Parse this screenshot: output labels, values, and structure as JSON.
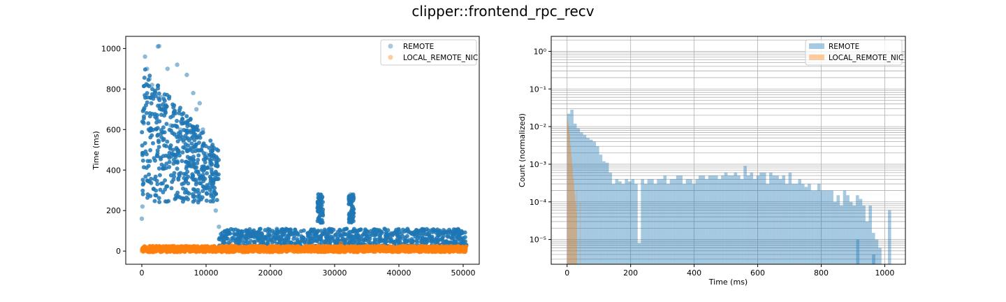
{
  "figure": {
    "title": "clipper::frontend_rpc_recv"
  },
  "colors": {
    "remote": "#1f77b4",
    "local": "#ff7f0e",
    "grid": "#b0b0b0",
    "axis": "#000000"
  },
  "chart_data": [
    {
      "type": "scatter",
      "title": "",
      "xlabel": "",
      "ylabel": "Time (ms)",
      "xlim": [
        -2500,
        52500
      ],
      "ylim": [
        -65,
        1060
      ],
      "xticks": [
        0,
        10000,
        20000,
        30000,
        40000,
        50000
      ],
      "xtick_labels": [
        "0",
        "10000",
        "20000",
        "30000",
        "40000",
        "50000"
      ],
      "yticks": [
        0,
        200,
        400,
        600,
        800,
        1000
      ],
      "ytick_labels": [
        "0",
        "200",
        "400",
        "600",
        "800",
        "1000"
      ],
      "grid": false,
      "legend_position": "top-right",
      "series": [
        {
          "name": "REMOTE",
          "color": "#1f77b4",
          "alpha": 0.4,
          "points": [
            [
              0,
              160
            ],
            [
              100,
              220
            ],
            [
              300,
              630
            ],
            [
              500,
              960
            ],
            [
              800,
              900
            ],
            [
              1200,
              850
            ],
            [
              1600,
              820
            ],
            [
              2000,
              780
            ],
            [
              2500,
              1010
            ],
            [
              2700,
              1012
            ],
            [
              3000,
              760
            ],
            [
              3500,
              700
            ],
            [
              4000,
              900
            ],
            [
              4500,
              620
            ],
            [
              5000,
              580
            ],
            [
              5500,
              920
            ],
            [
              6000,
              600
            ],
            [
              6500,
              540
            ],
            [
              7000,
              870
            ],
            [
              7500,
              500
            ],
            [
              8000,
              780
            ],
            [
              8500,
              700
            ],
            [
              9000,
              730
            ],
            [
              9500,
              600
            ],
            [
              10000,
              480
            ],
            [
              10500,
              420
            ],
            [
              11000,
              300
            ],
            [
              11500,
              200
            ],
            [
              12000,
              120
            ],
            [
              13000,
              60
            ],
            [
              15000,
              70
            ],
            [
              18000,
              80
            ],
            [
              21000,
              110
            ],
            [
              24000,
              90
            ],
            [
              27500,
              280
            ],
            [
              27800,
              230
            ],
            [
              28000,
              190
            ],
            [
              30000,
              60
            ],
            [
              32500,
              280
            ],
            [
              32800,
              220
            ],
            [
              35000,
              70
            ],
            [
              38000,
              60
            ],
            [
              41000,
              50
            ],
            [
              43500,
              100
            ],
            [
              46000,
              80
            ],
            [
              48000,
              70
            ],
            [
              50000,
              60
            ]
          ],
          "bands": [
            {
              "x": [
                0,
                12000
              ],
              "y_min": 240,
              "y_max": 920,
              "note": "dense cluster"
            },
            {
              "x": [
                12000,
                50500
              ],
              "y_min": 15,
              "y_max": 110,
              "note": "dense band"
            },
            {
              "x": [
                27300,
                28200
              ],
              "y_min": 140,
              "y_max": 280,
              "note": "spike"
            },
            {
              "x": [
                32200,
                33000
              ],
              "y_min": 140,
              "y_max": 280,
              "note": "spike"
            }
          ]
        },
        {
          "name": "LOCAL_REMOTE_NIC",
          "color": "#ff7f0e",
          "alpha": 0.4,
          "points": [
            [
              0,
              0
            ],
            [
              2000,
              10
            ],
            [
              5000,
              25
            ],
            [
              8000,
              15
            ],
            [
              11000,
              20
            ],
            [
              14000,
              30
            ],
            [
              17000,
              25
            ],
            [
              20000,
              20
            ],
            [
              23000,
              20
            ],
            [
              26000,
              20
            ],
            [
              29000,
              20
            ],
            [
              31000,
              40
            ],
            [
              34000,
              20
            ],
            [
              37000,
              20
            ],
            [
              40000,
              15
            ],
            [
              43000,
              20
            ],
            [
              46000,
              20
            ],
            [
              50000,
              20
            ]
          ],
          "bands": [
            {
              "x": [
                0,
                50500
              ],
              "y_min": -5,
              "y_max": 25,
              "note": "dense band"
            }
          ]
        }
      ]
    },
    {
      "type": "histogram",
      "title": "",
      "xlabel": "Time (ms)",
      "ylabel": "Count (normalized)",
      "yscale": "log",
      "xlim": [
        -50,
        1065
      ],
      "ylim": [
        2.2e-06,
        2.5
      ],
      "xticks": [
        0,
        200,
        400,
        600,
        800,
        1000
      ],
      "xtick_labels": [
        "0",
        "200",
        "400",
        "600",
        "800",
        "1000"
      ],
      "yticks": [
        1e-05,
        0.0001,
        0.001,
        0.01,
        0.1,
        1
      ],
      "ytick_labels": [
        "10⁻⁵",
        "10⁻⁴",
        "10⁻³",
        "10⁻²",
        "10⁻¹",
        "10⁰"
      ],
      "grid": true,
      "legend_position": "top-right",
      "series": [
        {
          "name": "REMOTE",
          "color": "#1f77b4",
          "alpha": 0.4,
          "bin_width": 10.1,
          "bin_start": 0,
          "values": [
            0.022,
            0.028,
            0.012,
            0.009,
            0.007,
            0.006,
            0.005,
            0.0045,
            0.004,
            0.003,
            0.0018,
            0.0012,
            0.0011,
            0.0006,
            0.0003,
            0.0004,
            0.00035,
            0.0003,
            0.0004,
            0.00035,
            0.0004,
            0.0003,
            8e-06,
            0.0004,
            0.0003,
            0.0004,
            0.0004,
            0.0003,
            0.0004,
            0.0004,
            0.0005,
            0.0003,
            0.0004,
            0.0004,
            0.0005,
            0.0005,
            0.0003,
            0.0004,
            0.0004,
            0.0003,
            0.0004,
            0.0005,
            0.0005,
            0.0004,
            0.0005,
            0.0005,
            0.0005,
            0.0004,
            0.0005,
            0.0006,
            0.0005,
            0.0005,
            0.0006,
            0.0005,
            0.0004,
            0.0009,
            0.0005,
            0.0006,
            0.0004,
            0.0005,
            0.0006,
            0.0006,
            0.0003,
            0.0006,
            0.0005,
            0.0005,
            0.0004,
            0.0005,
            0.0003,
            0.0006,
            0.0003,
            0.0003,
            0.0004,
            0.0003,
            0.00025,
            0.0003,
            0.0002,
            0.0002,
            0.0003,
            0.0002,
            0.0002,
            0.0002,
            0.0002,
            0.0001,
            0.00015,
            8e-05,
            0.0002,
            0.00015,
            0.0001,
            8e-05,
            0.00015,
            0.00012,
            8e-05,
            3e-05,
            8e-05,
            1.5e-05,
            1e-05,
            6e-06,
            0.0,
            0.0,
            0.0
          ],
          "extra_bars": [
            {
              "x": 910,
              "value": 1e-05
            },
            {
              "x": 960,
              "value": 4e-06
            },
            {
              "x": 1010,
              "value": 6e-05
            }
          ]
        },
        {
          "name": "LOCAL_REMOTE_NIC",
          "color": "#ff7f0e",
          "alpha": 0.4,
          "bin_width": 1.5,
          "bin_start": 0,
          "values": [
            0.018,
            0.015,
            0.012,
            0.01,
            0.008,
            0.006,
            0.004,
            0.003,
            0.002,
            0.0015,
            0.001,
            0.0008,
            0.0005,
            0.0004,
            0.0003,
            0.0002,
            0.00015,
            0.0001,
            8e-05,
            5e-05
          ],
          "extra_bars": [
            {
              "x": 30,
              "value": 0.0002
            },
            {
              "x": 40,
              "value": 0.0001
            }
          ]
        }
      ]
    }
  ]
}
